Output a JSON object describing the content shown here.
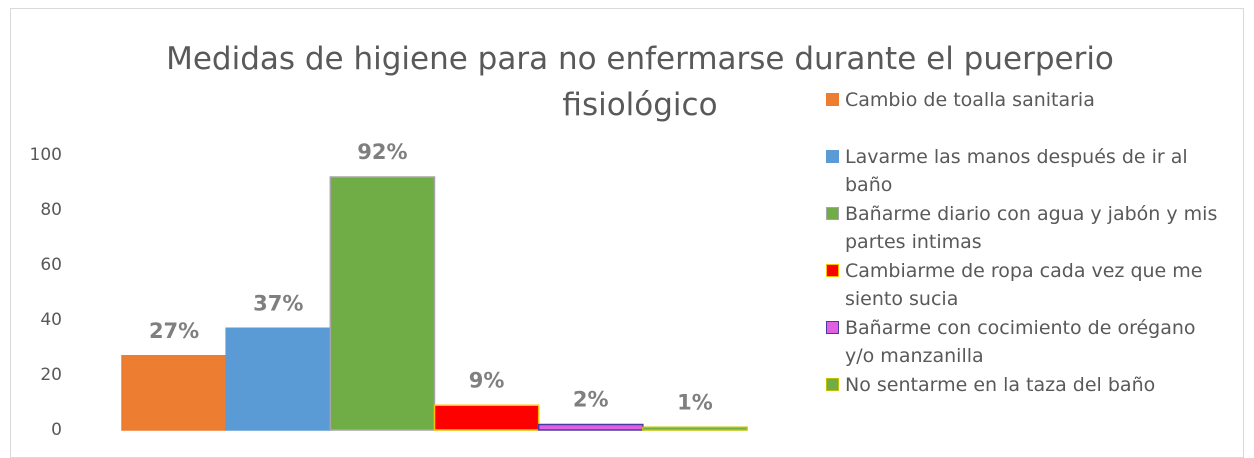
{
  "chart_data": {
    "type": "bar",
    "title": "Medidas de higiene para no enfermarse durante el puerperio fisiológico",
    "ylim": [
      0,
      100
    ],
    "yticks": [
      0,
      20,
      40,
      60,
      80,
      100
    ],
    "grid": false,
    "legend": "right",
    "series": [
      {
        "name": "Cambio de toalla sanitaria",
        "color": "#ed7d31",
        "edgecolor": "#ed7d31",
        "values": [
          27
        ],
        "value_labels": [
          "27%"
        ]
      },
      {
        "name": "Lavarme las manos después de ir al baño",
        "color": "#5b9bd5",
        "edgecolor": "#5b9bd5",
        "values": [
          37
        ],
        "value_labels": [
          "37%"
        ]
      },
      {
        "name": "Bañarme diario con agua y jabón y mis partes intimas",
        "color": "#70ad47",
        "edgecolor": "#a5a5a5",
        "values": [
          92
        ],
        "value_labels": [
          "92%"
        ]
      },
      {
        "name": "Cambiarme de ropa cada vez que me siento sucia",
        "color": "#ff0000",
        "edgecolor": "#ffc000",
        "values": [
          9
        ],
        "value_labels": [
          "9%"
        ]
      },
      {
        "name": "Bañarme con cocimiento de orégano y/o manzanilla",
        "color": "#e060e0",
        "edgecolor": "#4a3aa8",
        "values": [
          2
        ],
        "value_labels": [
          "2%"
        ]
      },
      {
        "name": "No sentarme en la taza del baño",
        "color": "#70ad47",
        "edgecolor": "#c0c000",
        "values": [
          1
        ],
        "value_labels": [
          "1%"
        ]
      }
    ]
  }
}
